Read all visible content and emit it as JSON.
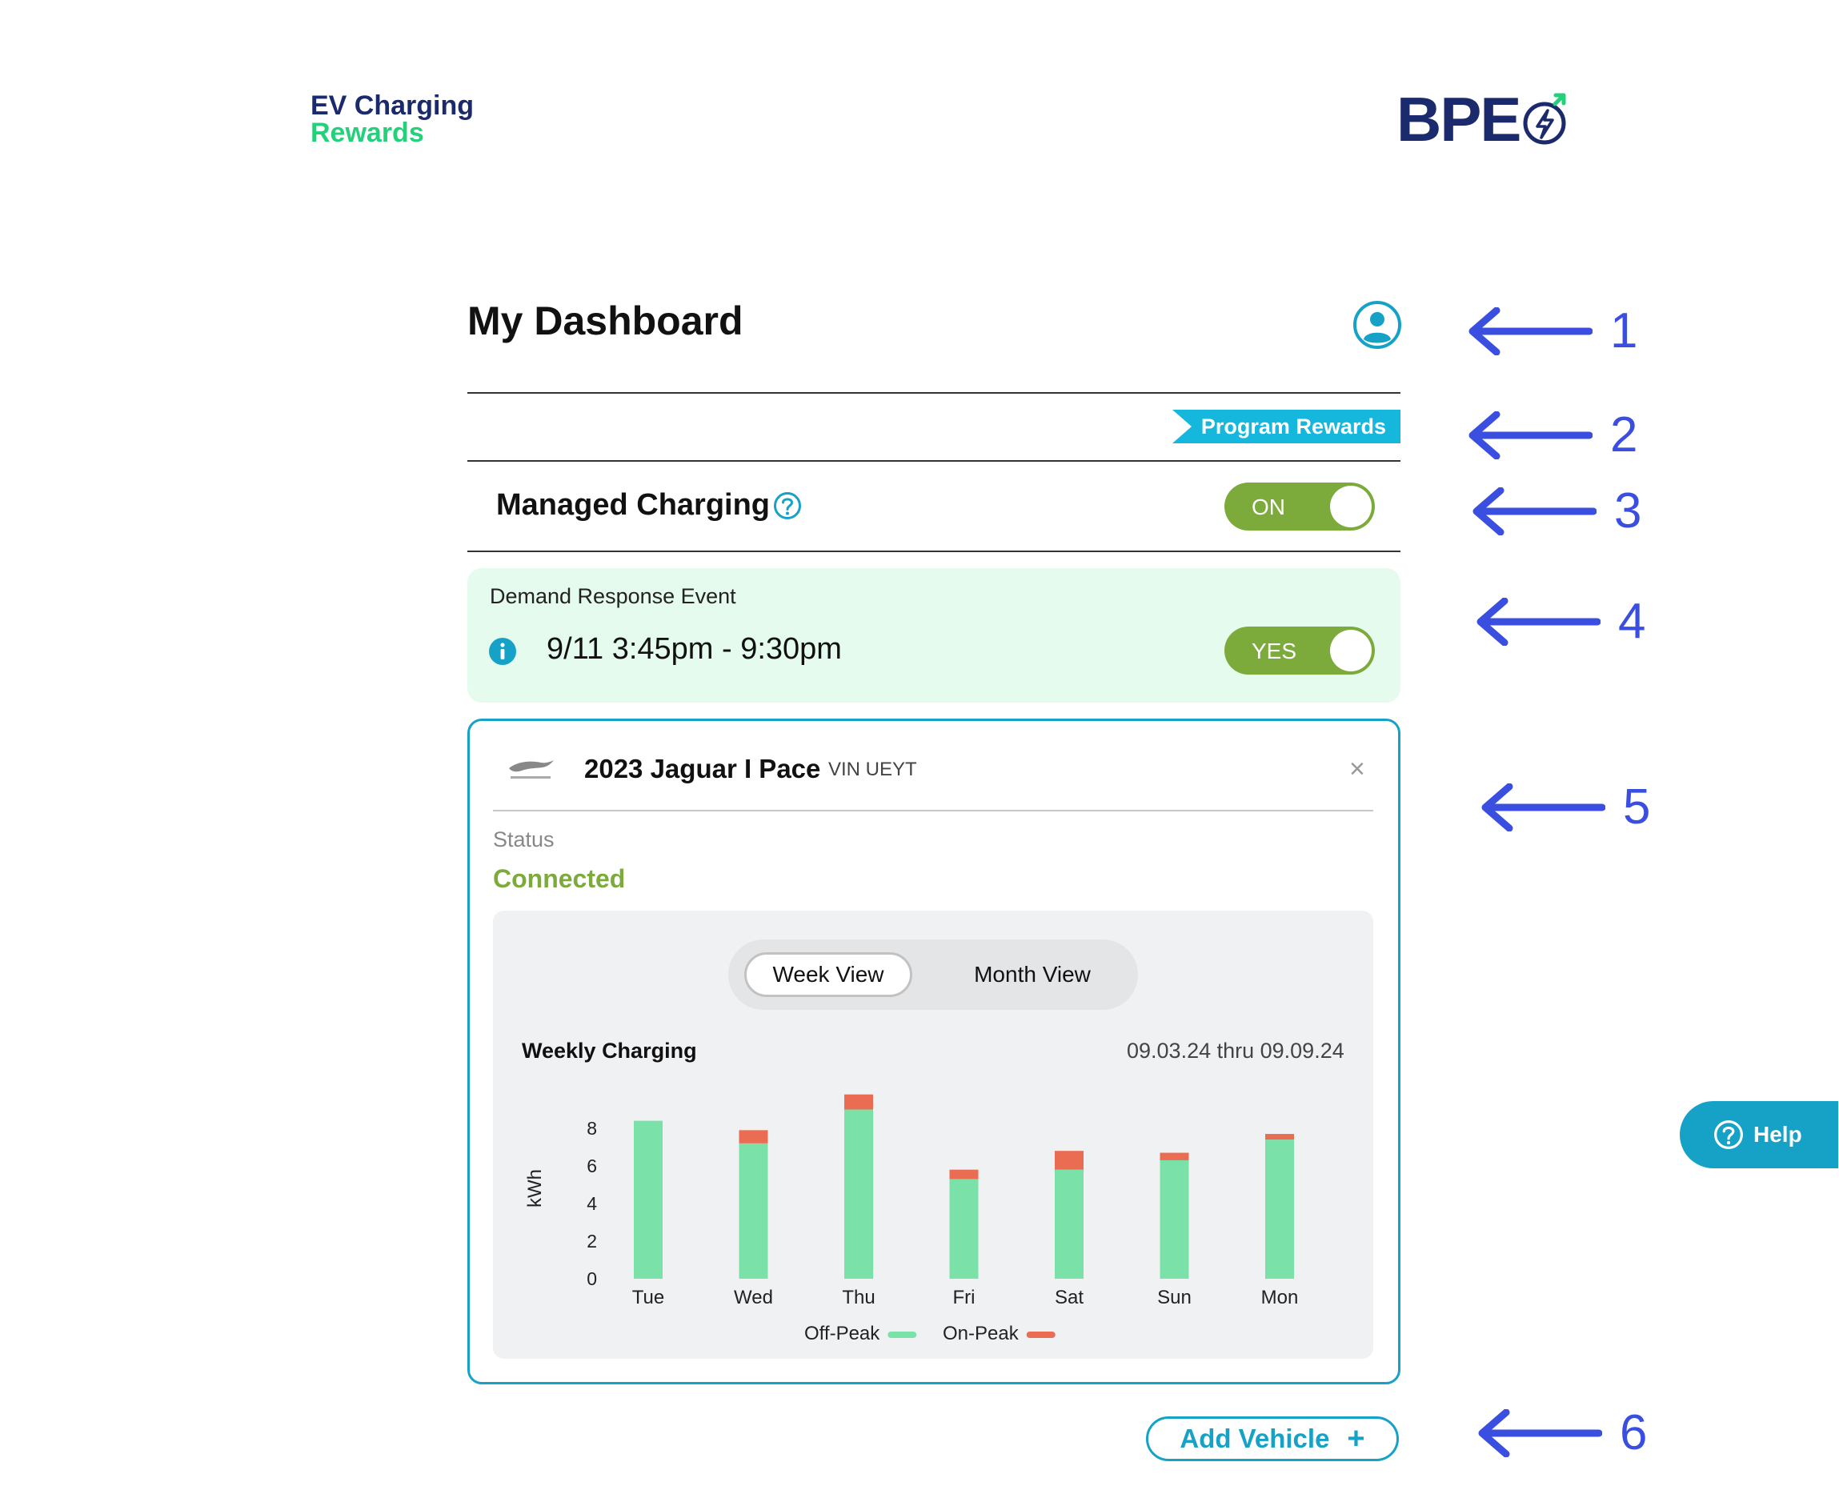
{
  "brand": {
    "line1": "EV Charging",
    "line2": "Rewards",
    "partner": "BPE",
    "partner_accent": "#23d17a"
  },
  "dashboard": {
    "title": "My Dashboard"
  },
  "rewards": {
    "label": "Program Rewards"
  },
  "managed_charging": {
    "label": "Managed Charging",
    "toggle_label": "ON",
    "enabled": true
  },
  "demand_response": {
    "title": "Demand Response Event",
    "time": "9/11 3:45pm - 9:30pm",
    "toggle_label": "YES",
    "enabled": true
  },
  "vehicle": {
    "name": "2023 Jaguar I Pace",
    "vin": "VIN UEYT",
    "status_label": "Status",
    "status_value": "Connected",
    "close_icon": "×"
  },
  "view_toggle": {
    "week": "Week View",
    "month": "Month View",
    "selected": "week"
  },
  "weekly": {
    "title": "Weekly Charging",
    "range": "09.03.24 thru 09.09.24"
  },
  "chart_data": {
    "type": "bar",
    "stacked": true,
    "categories": [
      "Tue",
      "Wed",
      "Thu",
      "Fri",
      "Sat",
      "Sun",
      "Mon"
    ],
    "series": [
      {
        "name": "Off-Peak",
        "color": "#7ae2a9",
        "values": [
          8.4,
          7.2,
          9.0,
          5.3,
          5.8,
          6.3,
          7.4
        ]
      },
      {
        "name": "On-Peak",
        "color": "#ea6d53",
        "values": [
          0,
          0.7,
          0.8,
          0.5,
          1.0,
          0.4,
          0.3
        ]
      }
    ],
    "ylabel": "kWh",
    "yticks": [
      0,
      2,
      4,
      6,
      8
    ],
    "ylim": [
      0,
      10
    ]
  },
  "actions": {
    "add_vehicle": "Add Vehicle",
    "add_icon": "+"
  },
  "help": {
    "label": "Help"
  },
  "annotations": [
    "1",
    "2",
    "3",
    "4",
    "5",
    "6"
  ],
  "colors": {
    "primary": "#16a2c7",
    "green": "#7cab3c",
    "navy": "#1a2a6c",
    "arrow": "#3a4fe0"
  }
}
